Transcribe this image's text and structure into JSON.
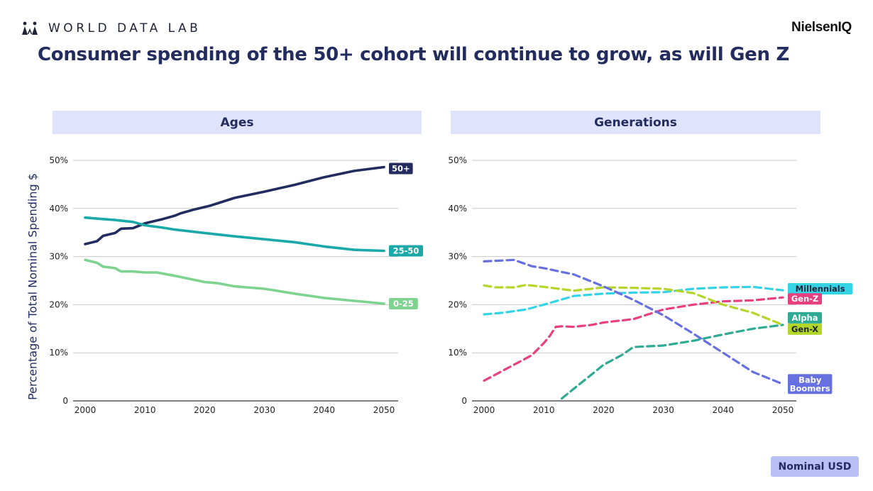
{
  "header": {
    "brand": "WORLD DATA LAB",
    "brand_icon": "people-icon",
    "partner": "NielsenIQ",
    "title": "Consumer spending of the 50+ cohort will continue to grow, as will Gen Z"
  },
  "footer": {
    "unit_badge": "Nominal USD"
  },
  "colors": {
    "50+": "#232c5e",
    "25-50": "#1aa8a8",
    "0-25": "#7ed391",
    "Millennials": "#35d3e6",
    "Gen-Z": "#e83f7f",
    "Gen-X": "#b4d62a",
    "Alpha": "#2faa93",
    "Baby Boomers": "#6670e0",
    "header_bg": "#dfe3fb",
    "title": "#232c5e",
    "grid": "#c8c8c8",
    "badge_bg": "#b8c0f5"
  },
  "chart_data": [
    {
      "type": "line",
      "title": "Ages",
      "ylabel": "Percentage of Total Nominal Spending $",
      "xlim": [
        2000,
        2050
      ],
      "ylim": [
        0,
        50
      ],
      "x_ticks": [
        "2000",
        "2010",
        "2020",
        "2030",
        "2040",
        "2050"
      ],
      "y_ticks": [
        "0",
        "10%",
        "20%",
        "30%",
        "40%",
        "50%"
      ],
      "grid": true,
      "line_style": "solid",
      "series": [
        {
          "name": "50+",
          "label": "50+",
          "color": "#232c5e",
          "x": [
            2000,
            2002,
            2003,
            2005,
            2006,
            2008,
            2010,
            2012,
            2013,
            2015,
            2016,
            2018,
            2020,
            2021,
            2022,
            2025,
            2030,
            2035,
            2040,
            2045,
            2050
          ],
          "y": [
            32.6,
            33.2,
            34.3,
            34.9,
            35.8,
            35.9,
            36.9,
            37.5,
            37.8,
            38.5,
            39.0,
            39.7,
            40.3,
            40.6,
            41.0,
            42.2,
            43.5,
            44.9,
            46.5,
            47.8,
            48.6
          ]
        },
        {
          "name": "25-50",
          "label": "25-50",
          "color": "#1aa8a8",
          "x": [
            2000,
            2005,
            2008,
            2010,
            2013,
            2015,
            2020,
            2025,
            2030,
            2035,
            2040,
            2045,
            2050
          ],
          "y": [
            38.1,
            37.6,
            37.2,
            36.5,
            36.0,
            35.6,
            34.9,
            34.2,
            33.6,
            33.0,
            32.1,
            31.4,
            31.2
          ]
        },
        {
          "name": "0-25",
          "label": "0-25",
          "color": "#7ed391",
          "x": [
            2000,
            2002,
            2003,
            2005,
            2006,
            2008,
            2010,
            2012,
            2015,
            2020,
            2022,
            2025,
            2030,
            2035,
            2040,
            2045,
            2050
          ],
          "y": [
            29.3,
            28.7,
            27.9,
            27.6,
            26.9,
            26.9,
            26.7,
            26.7,
            26.0,
            24.7,
            24.5,
            23.8,
            23.3,
            22.3,
            21.4,
            20.8,
            20.2
          ]
        }
      ]
    },
    {
      "type": "line",
      "title": "Generations",
      "xlim": [
        2000,
        2050
      ],
      "ylim": [
        0,
        50
      ],
      "x_ticks": [
        "2000",
        "2010",
        "2020",
        "2030",
        "2040",
        "2050"
      ],
      "y_ticks": [
        "0",
        "10%",
        "20%",
        "30%",
        "40%",
        "50%"
      ],
      "grid": true,
      "line_style": "dashed",
      "series": [
        {
          "name": "Millennials",
          "label": "Millennials",
          "color": "#35d3e6",
          "x": [
            2000,
            2003,
            2007,
            2010,
            2015,
            2020,
            2025,
            2030,
            2035,
            2040,
            2045,
            2050
          ],
          "y": [
            18.0,
            18.3,
            19.0,
            20.0,
            21.8,
            22.3,
            22.5,
            22.6,
            23.3,
            23.6,
            23.7,
            23.0
          ]
        },
        {
          "name": "Gen-Z",
          "label": "Gen-Z",
          "color": "#e83f7f",
          "x": [
            2000,
            2005,
            2008,
            2010,
            2011,
            2012,
            2013,
            2015,
            2018,
            2020,
            2025,
            2030,
            2035,
            2040,
            2045,
            2050
          ],
          "y": [
            4.2,
            7.5,
            9.5,
            12.0,
            13.5,
            15.4,
            15.5,
            15.4,
            15.8,
            16.3,
            17.0,
            19.0,
            20.0,
            20.7,
            20.9,
            21.5
          ]
        },
        {
          "name": "Gen-X",
          "label": "Gen-X",
          "color": "#b4d62a",
          "x": [
            2000,
            2002,
            2005,
            2007,
            2010,
            2015,
            2020,
            2025,
            2030,
            2035,
            2040,
            2045,
            2050
          ],
          "y": [
            24.0,
            23.6,
            23.6,
            24.1,
            23.7,
            22.9,
            23.6,
            23.5,
            23.3,
            22.4,
            20.0,
            18.3,
            15.8
          ]
        },
        {
          "name": "Alpha",
          "label": "Alpha",
          "color": "#2faa93",
          "x": [
            2013,
            2015,
            2018,
            2020,
            2023,
            2025,
            2030,
            2035,
            2040,
            2045,
            2050
          ],
          "y": [
            0.5,
            2.5,
            5.5,
            7.5,
            9.5,
            11.2,
            11.5,
            12.5,
            13.8,
            15.0,
            15.8
          ]
        },
        {
          "name": "Baby Boomers",
          "label": "Baby\nBoomers",
          "color": "#6670e0",
          "x": [
            2000,
            2005,
            2008,
            2010,
            2013,
            2015,
            2020,
            2025,
            2030,
            2035,
            2040,
            2045,
            2050
          ],
          "y": [
            29.0,
            29.3,
            28.0,
            27.6,
            26.8,
            26.3,
            23.8,
            21.0,
            17.8,
            14.0,
            10.0,
            6.0,
            3.5
          ]
        }
      ]
    }
  ]
}
